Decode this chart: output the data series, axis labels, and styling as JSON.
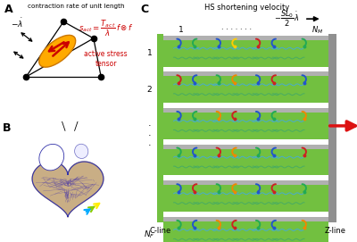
{
  "bg_color": "#ffffff",
  "panel_A": {
    "label": "A",
    "title": "contraction rate of unit length"
  },
  "panel_B": {
    "label": "B",
    "heart_fill": "#c8a87a",
    "heart_edge": "#4444aa",
    "mesh_color": "#3333aa"
  },
  "panel_C": {
    "label": "C",
    "title": "HS shortening velocity",
    "green_color": "#72c040",
    "gray_color": "#b0b0b0",
    "zline_color": "#909090",
    "cline_color": "#72c040",
    "red_arrow_color": "#dd1111"
  },
  "colors": {
    "red": "#cc1111",
    "blue": "#2255cc",
    "teal": "#22aaaa",
    "green": "#22aa44",
    "yellow": "#ffcc00",
    "orange_red": "#ee6611",
    "gold": "#ffaa00",
    "dark_orange": "#dd7700"
  }
}
